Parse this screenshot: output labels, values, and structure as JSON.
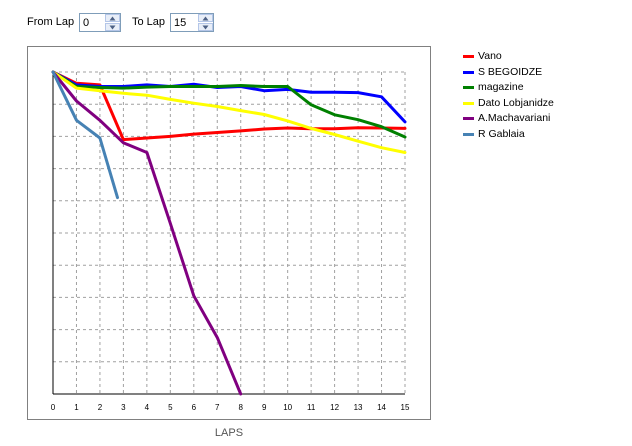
{
  "controls": {
    "from_label": "From Lap",
    "from_value": "0",
    "to_label": "To Lap",
    "to_value": "15"
  },
  "chart_data": {
    "type": "line",
    "title": "",
    "xlabel": "LAPS",
    "ylabel": "",
    "xlim": [
      0,
      15
    ],
    "ylim": [
      0,
      100
    ],
    "x_ticks": [
      "0",
      "1",
      "2",
      "3",
      "4",
      "5",
      "6",
      "7",
      "8",
      "9",
      "10",
      "11",
      "12",
      "13",
      "14",
      "15"
    ],
    "grid": true,
    "legend_position": "right",
    "series": [
      {
        "name": "Vano",
        "color": "#ff0000",
        "x": [
          0,
          1,
          2,
          3,
          4,
          5,
          6,
          7,
          8,
          9,
          10,
          11,
          12,
          13,
          14,
          15
        ],
        "y": [
          100,
          96.5,
          96,
          79,
          79.5,
          80,
          80.7,
          81.2,
          81.7,
          82.3,
          82.6,
          82.4,
          82.4,
          82.7,
          82.6,
          82.5
        ]
      },
      {
        "name": "S BEGOIDZE",
        "color": "#0000ff",
        "x": [
          0,
          1,
          2,
          3,
          4,
          5,
          6,
          7,
          8,
          9,
          10,
          11,
          12,
          13,
          14,
          15
        ],
        "y": [
          100,
          96,
          95.5,
          95.5,
          96,
          95.5,
          96.2,
          95.2,
          95.5,
          94.2,
          94.6,
          93.7,
          93.7,
          93.6,
          92.3,
          84.5
        ]
      },
      {
        "name": "magazine",
        "color": "#008000",
        "x": [
          0,
          1,
          2,
          3,
          4,
          5,
          6,
          7,
          8,
          9,
          10,
          11,
          12,
          13,
          14,
          15
        ],
        "y": [
          100,
          95.5,
          95.2,
          95,
          95.3,
          95.5,
          95.5,
          95.5,
          95.8,
          95.5,
          95.5,
          89.8,
          86.7,
          85.2,
          83,
          79.8
        ]
      },
      {
        "name": "Dato Lobjanidze",
        "color": "#ffff00",
        "x": [
          0,
          1,
          2,
          3,
          4,
          5,
          6,
          7,
          8,
          9,
          10,
          11,
          12,
          13,
          14,
          15
        ],
        "y": [
          100,
          95,
          94.2,
          93.4,
          92.8,
          91.5,
          90.3,
          89.3,
          88,
          86.8,
          84.8,
          82.5,
          80.6,
          78.5,
          76.5,
          75
        ]
      },
      {
        "name": "A.Machavariani",
        "color": "#800080",
        "x": [
          0,
          1,
          2,
          3,
          4,
          5,
          6,
          7,
          8
        ],
        "y": [
          100,
          91,
          85,
          78,
          75,
          53,
          30.5,
          17.5,
          0
        ]
      },
      {
        "name": "R Gablaia",
        "color": "#4682b4",
        "x": [
          0,
          1,
          2,
          2.75
        ],
        "y": [
          100,
          85,
          79.5,
          61
        ]
      }
    ]
  }
}
